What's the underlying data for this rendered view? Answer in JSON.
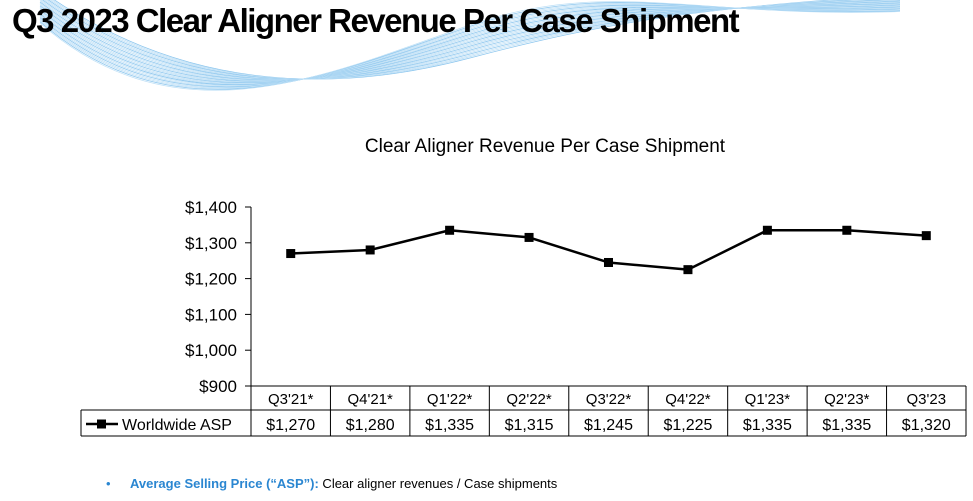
{
  "page": {
    "title": "Q3 2023 Clear Aligner Revenue Per Case Shipment"
  },
  "footnote": {
    "bullet": "•",
    "term": "Average Selling Price (“ASP”):",
    "text": " Clear aligner revenues / Case shipments"
  },
  "colors": {
    "accent": "#2a86d1",
    "series": "#000000"
  },
  "chart_data": {
    "type": "line",
    "title": "Clear Aligner Revenue Per Case Shipment",
    "xlabel": "",
    "ylabel": "",
    "categories": [
      "Q3'21*",
      "Q4'21*",
      "Q1'22*",
      "Q2'22*",
      "Q3'22*",
      "Q4'22*",
      "Q1'23*",
      "Q2'23*",
      "Q3'23"
    ],
    "series": [
      {
        "name": "Worldwide ASP",
        "values": [
          1270,
          1280,
          1335,
          1315,
          1245,
          1225,
          1335,
          1335,
          1320
        ],
        "labels": [
          "$1,270",
          "$1,280",
          "$1,335",
          "$1,315",
          "$1,245",
          "$1,225",
          "$1,335",
          "$1,335",
          "$1,320"
        ],
        "marker": "square"
      }
    ],
    "ylim": [
      900,
      1400
    ],
    "yticks": [
      900,
      1000,
      1100,
      1200,
      1300,
      1400
    ],
    "ytick_labels": [
      "$900",
      "$1,000",
      "$1,100",
      "$1,200",
      "$1,300",
      "$1,400"
    ],
    "grid": false,
    "legend": "data-table-left",
    "data_table": true
  }
}
